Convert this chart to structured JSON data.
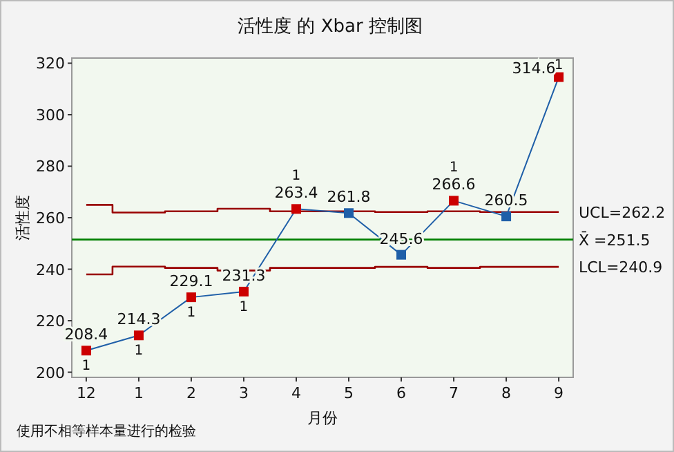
{
  "chart_data": {
    "type": "line",
    "title": "活性度 的 Xbar 控制图",
    "xlabel": "月份",
    "ylabel": "活性度",
    "categories": [
      "12",
      "1",
      "2",
      "3",
      "4",
      "5",
      "6",
      "7",
      "8",
      "9"
    ],
    "series": [
      {
        "color": "#1f5fa8",
        "colors": [
          "#cc0000",
          "#cc0000",
          "#cc0000",
          "#cc0000",
          "#cc0000",
          "#1f5fa8",
          "#1f5fa8",
          "#cc0000",
          "#1f5fa8",
          "#cc0000"
        ],
        "values": [
          208.4,
          214.3,
          229.1,
          231.3,
          263.4,
          261.8,
          245.6,
          266.6,
          260.5,
          314.6
        ],
        "data_labels": true
      },
      {
        "type": "step",
        "name": "UCL=262.2",
        "marker": "none",
        "color": "#990000",
        "values": [
          265,
          262,
          262.5,
          263.5,
          262.5,
          262.5,
          262.2,
          262.5,
          262.2,
          262.2
        ]
      },
      {
        "type": "step",
        "name": "LCL=240.9",
        "marker": "none",
        "color": "#990000",
        "values": [
          238,
          241,
          240.5,
          239.5,
          240.5,
          240.5,
          240.9,
          240.5,
          240.9,
          240.9
        ]
      }
    ],
    "ref_lines": [
      {
        "axis": "y",
        "value": 251.5,
        "label": "X̄ =251.5",
        "color": "#008000"
      }
    ],
    "ylim": [
      198,
      322
    ],
    "yticks": [
      200,
      220,
      240,
      260,
      280,
      300,
      320
    ],
    "grid": false,
    "marker": "square",
    "annotations": [
      {
        "text": "1",
        "x": "12",
        "y": 208.4
      },
      {
        "text": "1",
        "x": "1",
        "y": 214.3
      },
      {
        "text": "1",
        "x": "2",
        "y": 229.1
      },
      {
        "text": "1",
        "x": "3",
        "y": 231.3
      },
      {
        "text": "1",
        "x": "4",
        "y": 263.4
      },
      {
        "text": "1",
        "x": "7",
        "y": 266.6
      },
      {
        "text": "1",
        "x": "9",
        "y": 314.6
      },
      "使用不相等样本量进行的检验"
    ]
  }
}
